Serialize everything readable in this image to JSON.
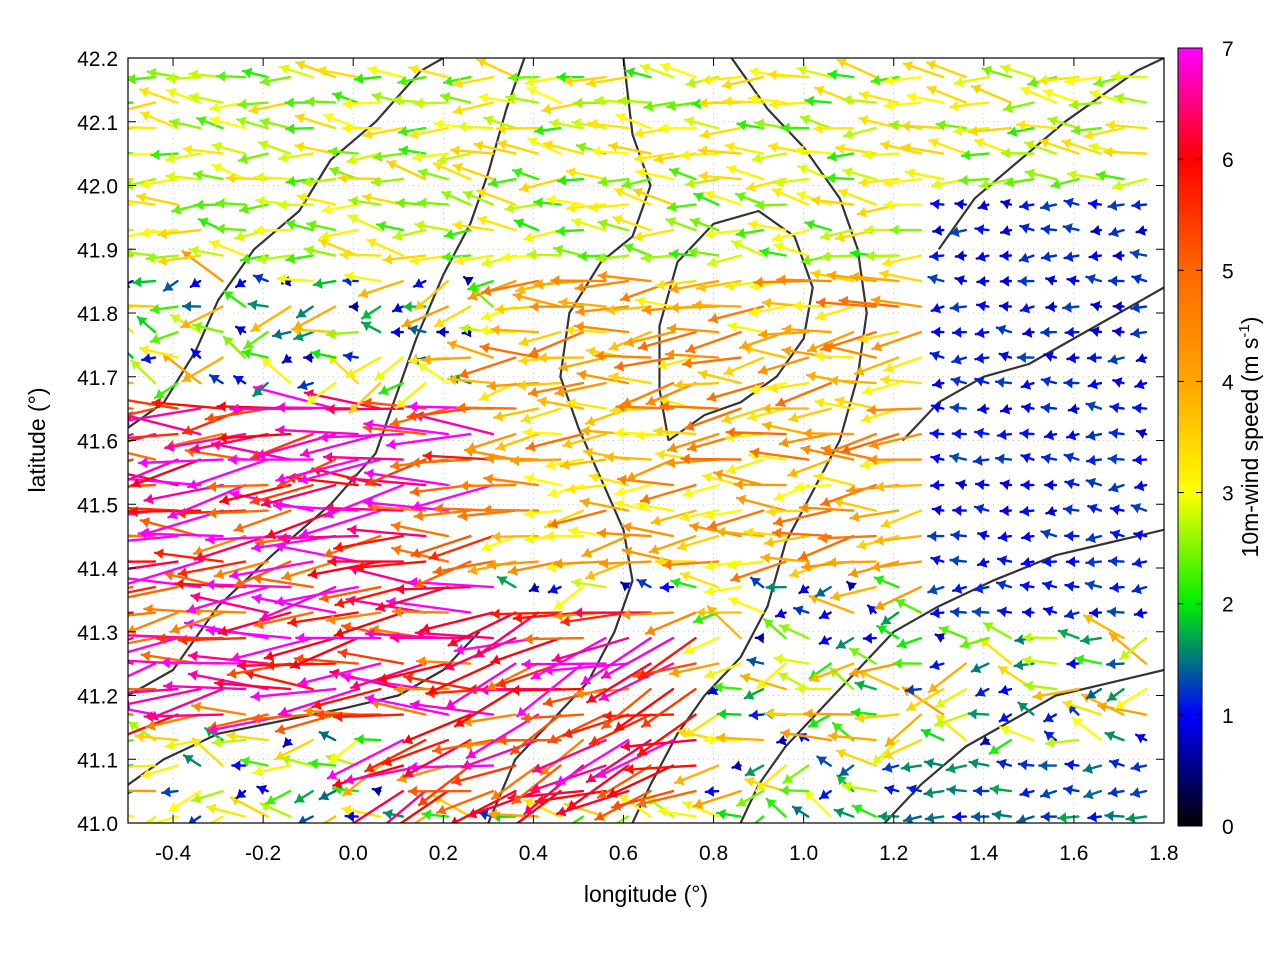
{
  "chart_data": {
    "type": "vector-field",
    "xlabel": "longitude (°)",
    "ylabel": "latitude (°)",
    "xlim": [
      -0.5,
      1.8
    ],
    "ylim": [
      41.0,
      42.2
    ],
    "x_ticks": [
      "-0.4",
      "-0.2",
      "0.0",
      "0.2",
      "0.4",
      "0.6",
      "0.8",
      "1.0",
      "1.2",
      "1.4",
      "1.6",
      "1.8"
    ],
    "y_ticks": [
      "41.0",
      "41.1",
      "41.2",
      "41.3",
      "41.4",
      "41.5",
      "41.6",
      "41.7",
      "41.8",
      "41.9",
      "42.0",
      "42.1",
      "42.2"
    ],
    "grid": true,
    "colorbar": {
      "label": "10m-wind speed (m s",
      "label_sup": "-1",
      "label_end": ")",
      "range": [
        0,
        7
      ],
      "ticks": [
        "0",
        "1",
        "2",
        "3",
        "4",
        "5",
        "6",
        "7"
      ],
      "stops": [
        {
          "value": 0,
          "color": "#000000"
        },
        {
          "value": 1,
          "color": "#0000ff"
        },
        {
          "value": 2,
          "color": "#00ee00"
        },
        {
          "value": 3,
          "color": "#ffff00"
        },
        {
          "value": 4,
          "color": "#ffa500"
        },
        {
          "value": 5,
          "color": "#ff6600"
        },
        {
          "value": 6,
          "color": "#ff0000"
        },
        {
          "value": 7,
          "color": "#ff00ff"
        }
      ]
    },
    "vectors": {
      "field": "10m wind",
      "grid_step_lon": 0.05,
      "grid_step_lat": 0.04,
      "max_speed": 7,
      "regions": [
        {
          "name": "strong-westward-jet",
          "lon": [
            -0.5,
            0.35
          ],
          "lat": [
            41.15,
            41.65
          ],
          "speed": 6.8,
          "dir_deg": 185
        },
        {
          "name": "southeast-outflow",
          "lon": [
            0.1,
            0.8
          ],
          "lat": [
            41.05,
            41.35
          ],
          "speed": 6.5,
          "dir_deg": 200
        },
        {
          "name": "central-band",
          "lon": [
            0.35,
            1.3
          ],
          "lat": [
            41.4,
            41.85
          ],
          "speed": 4.5,
          "dir_deg": 185
        },
        {
          "name": "weak-east",
          "lon": [
            1.3,
            1.8
          ],
          "lat": [
            41.3,
            42.0
          ],
          "speed": 1.2,
          "dir_deg": 180
        },
        {
          "name": "southeast-coast",
          "lon": [
            1.2,
            1.8
          ],
          "lat": [
            41.0,
            41.1
          ],
          "speed": 1.6,
          "dir_deg": 180
        },
        {
          "name": "north-band",
          "lon": [
            -0.5,
            1.8
          ],
          "lat": [
            41.85,
            42.2
          ],
          "speed": 3.2,
          "dir_deg": 175
        }
      ]
    },
    "contours": {
      "color": "#333333",
      "lines": [
        [
          [
            -0.5,
            41.62
          ],
          [
            -0.42,
            41.66
          ],
          [
            -0.35,
            41.74
          ],
          [
            -0.3,
            41.82
          ],
          [
            -0.22,
            41.9
          ],
          [
            -0.12,
            41.96
          ],
          [
            -0.05,
            42.04
          ],
          [
            0.05,
            42.1
          ],
          [
            0.15,
            42.18
          ],
          [
            0.2,
            42.2
          ]
        ],
        [
          [
            -0.5,
            41.2
          ],
          [
            -0.4,
            41.24
          ],
          [
            -0.3,
            41.34
          ],
          [
            -0.18,
            41.42
          ],
          [
            -0.05,
            41.5
          ],
          [
            0.05,
            41.58
          ],
          [
            0.1,
            41.68
          ],
          [
            0.14,
            41.76
          ],
          [
            0.2,
            41.86
          ],
          [
            0.26,
            41.94
          ],
          [
            0.3,
            42.02
          ],
          [
            0.34,
            42.12
          ],
          [
            0.38,
            42.2
          ]
        ],
        [
          [
            0.3,
            41.0
          ],
          [
            0.36,
            41.1
          ],
          [
            0.44,
            41.16
          ],
          [
            0.52,
            41.22
          ],
          [
            0.58,
            41.3
          ],
          [
            0.62,
            41.38
          ],
          [
            0.6,
            41.46
          ],
          [
            0.55,
            41.54
          ],
          [
            0.5,
            41.62
          ],
          [
            0.46,
            41.7
          ],
          [
            0.48,
            41.8
          ],
          [
            0.55,
            41.88
          ],
          [
            0.62,
            41.92
          ],
          [
            0.66,
            42.0
          ],
          [
            0.62,
            42.08
          ],
          [
            0.6,
            42.2
          ]
        ],
        [
          [
            0.62,
            41.0
          ],
          [
            0.66,
            41.06
          ],
          [
            0.72,
            41.14
          ],
          [
            0.78,
            41.2
          ],
          [
            0.86,
            41.26
          ],
          [
            0.92,
            41.34
          ],
          [
            0.96,
            41.44
          ],
          [
            1.02,
            41.52
          ],
          [
            1.08,
            41.6
          ],
          [
            1.12,
            41.7
          ],
          [
            1.14,
            41.8
          ],
          [
            1.12,
            41.9
          ],
          [
            1.08,
            41.98
          ],
          [
            1.0,
            42.06
          ],
          [
            0.92,
            42.12
          ],
          [
            0.84,
            42.2
          ]
        ],
        [
          [
            0.86,
            41.0
          ],
          [
            0.9,
            41.06
          ],
          [
            0.96,
            41.12
          ],
          [
            1.04,
            41.18
          ],
          [
            1.12,
            41.24
          ],
          [
            1.2,
            41.3
          ],
          [
            1.3,
            41.34
          ],
          [
            1.42,
            41.38
          ],
          [
            1.56,
            41.42
          ],
          [
            1.68,
            41.44
          ],
          [
            1.8,
            41.46
          ]
        ],
        [
          [
            1.18,
            41.0
          ],
          [
            1.26,
            41.06
          ],
          [
            1.36,
            41.12
          ],
          [
            1.46,
            41.16
          ],
          [
            1.56,
            41.2
          ],
          [
            1.68,
            41.22
          ],
          [
            1.8,
            41.24
          ]
        ],
        [
          [
            1.22,
            41.6
          ],
          [
            1.3,
            41.66
          ],
          [
            1.4,
            41.7
          ],
          [
            1.5,
            41.72
          ],
          [
            1.6,
            41.76
          ],
          [
            1.7,
            41.8
          ],
          [
            1.8,
            41.84
          ]
        ],
        [
          [
            1.3,
            41.9
          ],
          [
            1.38,
            41.98
          ],
          [
            1.48,
            42.04
          ],
          [
            1.58,
            42.1
          ],
          [
            1.66,
            42.14
          ],
          [
            1.74,
            42.18
          ],
          [
            1.8,
            42.2
          ]
        ],
        [
          [
            -0.5,
            41.06
          ],
          [
            -0.42,
            41.1
          ],
          [
            -0.3,
            41.14
          ],
          [
            -0.16,
            41.16
          ],
          [
            -0.02,
            41.18
          ],
          [
            0.1,
            41.2
          ],
          [
            0.2,
            41.24
          ],
          [
            0.28,
            41.3
          ]
        ],
        [
          [
            0.7,
            41.6
          ],
          [
            0.78,
            41.64
          ],
          [
            0.86,
            41.66
          ],
          [
            0.94,
            41.7
          ],
          [
            1.0,
            41.76
          ],
          [
            1.02,
            41.84
          ],
          [
            0.98,
            41.92
          ],
          [
            0.9,
            41.96
          ],
          [
            0.8,
            41.94
          ],
          [
            0.72,
            41.88
          ],
          [
            0.68,
            41.78
          ],
          [
            0.68,
            41.68
          ],
          [
            0.7,
            41.6
          ]
        ]
      ]
    }
  }
}
